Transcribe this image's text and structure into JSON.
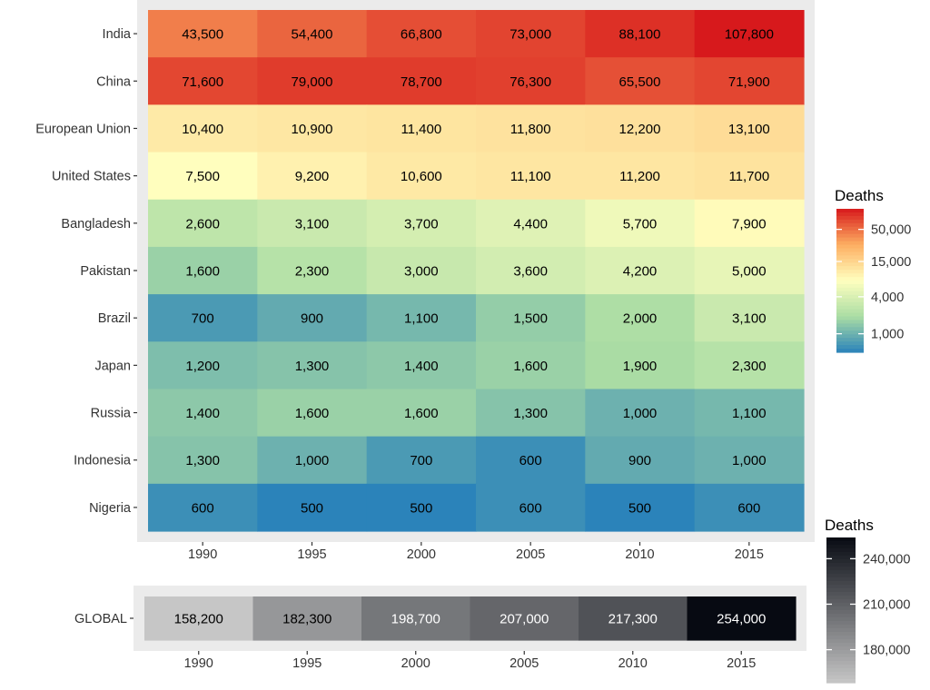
{
  "chart_data": [
    {
      "type": "heatmap",
      "title": "",
      "xlabel": "",
      "ylabel": "",
      "x": [
        "1990",
        "1995",
        "2000",
        "2005",
        "2010",
        "2015"
      ],
      "y": [
        "India",
        "China",
        "European Union",
        "United States",
        "Bangladesh",
        "Pakistan",
        "Brazil",
        "Japan",
        "Russia",
        "Indonesia",
        "Nigeria"
      ],
      "values": [
        [
          43500,
          54400,
          66800,
          73000,
          88100,
          107800
        ],
        [
          71600,
          79000,
          78700,
          76300,
          65500,
          71900
        ],
        [
          10400,
          10900,
          11400,
          11800,
          12200,
          13100
        ],
        [
          7500,
          9200,
          10600,
          11100,
          11200,
          11700
        ],
        [
          2600,
          3100,
          3700,
          4400,
          5700,
          7900
        ],
        [
          1600,
          2300,
          3000,
          3600,
          4200,
          5000
        ],
        [
          700,
          900,
          1100,
          1500,
          2000,
          3100
        ],
        [
          1200,
          1300,
          1400,
          1600,
          1900,
          2300
        ],
        [
          1400,
          1600,
          1600,
          1300,
          1000,
          1100
        ],
        [
          1300,
          1000,
          700,
          600,
          900,
          1000
        ],
        [
          600,
          500,
          500,
          600,
          500,
          600
        ]
      ],
      "cell_labels": [
        [
          "43,500",
          "54,400",
          "66,800",
          "73,000",
          "88,100",
          "107,800"
        ],
        [
          "71,600",
          "79,000",
          "78,700",
          "76,300",
          "65,500",
          "71,900"
        ],
        [
          "10,400",
          "10,900",
          "11,400",
          "11,800",
          "12,200",
          "13,100"
        ],
        [
          "7,500",
          "9,200",
          "10,600",
          "11,100",
          "11,200",
          "11,700"
        ],
        [
          "2,600",
          "3,100",
          "3,700",
          "4,400",
          "5,700",
          "7,900"
        ],
        [
          "1,600",
          "2,300",
          "3,000",
          "3,600",
          "4,200",
          "5,000"
        ],
        [
          "700",
          "900",
          "1,100",
          "1,500",
          "2,000",
          "3,100"
        ],
        [
          "1,200",
          "1,300",
          "1,400",
          "1,600",
          "1,900",
          "2,300"
        ],
        [
          "1,400",
          "1,600",
          "1,600",
          "1,300",
          "1,000",
          "1,100"
        ],
        [
          "1,300",
          "1,000",
          "700",
          "600",
          "900",
          "1,000"
        ],
        [
          "600",
          "500",
          "500",
          "600",
          "500",
          "600"
        ]
      ],
      "color_scale": "log",
      "palette": [
        "#2b83ba",
        "#abdda4",
        "#ffffbf",
        "#fdae61",
        "#d7191c"
      ],
      "legend": {
        "title": "Deaths",
        "range": [
          500,
          108000
        ],
        "breaks": [
          1000,
          4000,
          15000,
          50000
        ],
        "labels": [
          "1,000",
          "4,000",
          "15,000",
          "50,000"
        ],
        "position": "right"
      }
    },
    {
      "type": "heatmap",
      "title": "",
      "xlabel": "",
      "ylabel": "",
      "x": [
        "1990",
        "1995",
        "2000",
        "2005",
        "2010",
        "2015"
      ],
      "y": [
        "GLOBAL"
      ],
      "values": [
        [
          158200,
          182300,
          198700,
          207000,
          217300,
          254000
        ]
      ],
      "cell_labels": [
        [
          "158,200",
          "182,300",
          "198,700",
          "207,000",
          "217,300",
          "254,000"
        ]
      ],
      "color_scale": "linear",
      "palette": [
        "#c6c6c6",
        "#070a12"
      ],
      "legend": {
        "title": "Deaths",
        "range": [
          158200,
          254000
        ],
        "breaks": [
          180000,
          210000,
          240000
        ],
        "labels": [
          "180,000",
          "210,000",
          "240,000"
        ],
        "position": "bottom-right"
      }
    }
  ]
}
